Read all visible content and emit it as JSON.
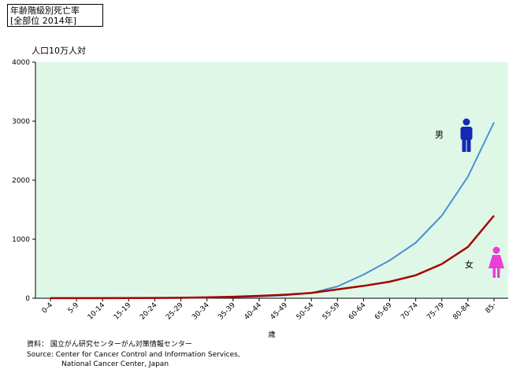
{
  "title": {
    "line1": "年齢階級別死亡率",
    "line2": "[全部位 2014年]"
  },
  "chart_data": {
    "type": "line",
    "ylabel": "人口10万人対",
    "xlabel": "歳",
    "ylim": [
      0,
      4000
    ],
    "yticks": [
      0,
      1000,
      2000,
      3000,
      4000
    ],
    "grid": false,
    "plot_background": "#dff7e7",
    "categories": [
      "0-4",
      "5-9",
      "10-14",
      "15-19",
      "20-24",
      "25-29",
      "30-34",
      "35-39",
      "40-44",
      "45-49",
      "50-54",
      "55-59",
      "60-64",
      "65-69",
      "70-74",
      "75-79",
      "80-84",
      "85-"
    ],
    "series": [
      {
        "name": "男",
        "color": "#4a8fd4",
        "icon": "male-person-icon",
        "icon_color": "#1428b4",
        "values": [
          2,
          2,
          2,
          3,
          4,
          6,
          10,
          18,
          30,
          50,
          90,
          200,
          400,
          640,
          940,
          1400,
          2060,
          2980
        ]
      },
      {
        "name": "女",
        "color": "#a80000",
        "icon": "female-person-icon",
        "icon_color": "#e83fd4",
        "values": [
          2,
          2,
          2,
          3,
          5,
          8,
          14,
          26,
          40,
          60,
          90,
          150,
          210,
          280,
          390,
          580,
          870,
          1400
        ]
      }
    ]
  },
  "source": {
    "line1": "資料：  国立がん研究センターがん対策情報センター",
    "line2": "Source: Center for Cancer Control and Information Services,",
    "line3": "National Cancer Center, Japan"
  }
}
